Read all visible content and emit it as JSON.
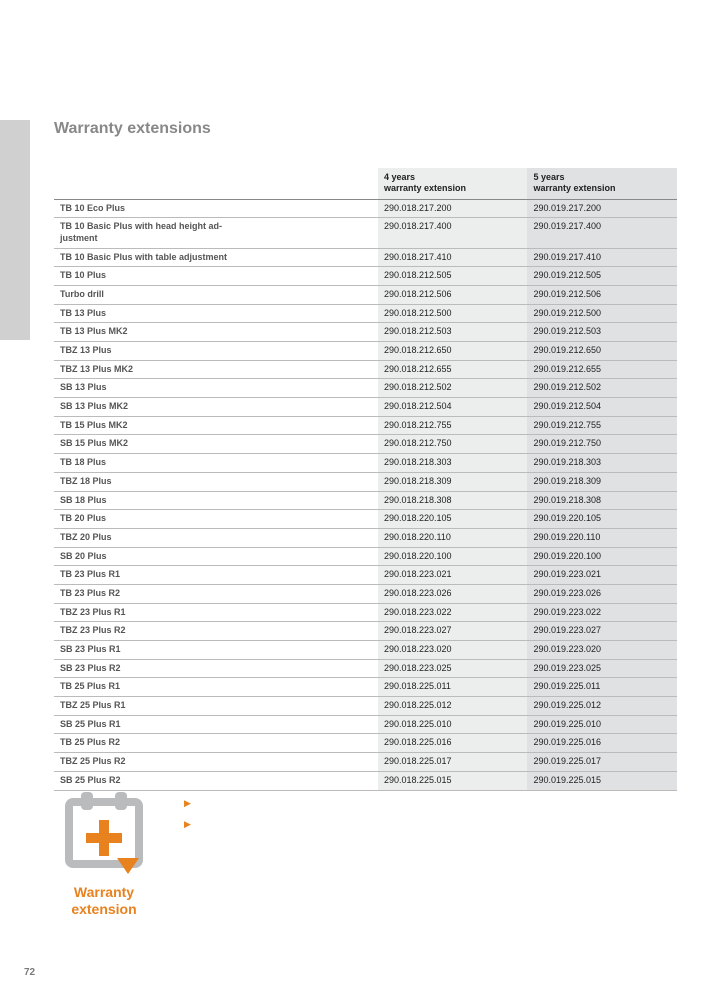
{
  "title": "Warranty extensions",
  "page_number": "72",
  "columns": {
    "c1": "",
    "c2_line1": "4 years",
    "c2_line2": "warranty extension",
    "c3_line1": "5 years",
    "c3_line2": "warranty extension"
  },
  "rows": [
    {
      "name": "TB 10 Eco Plus",
      "c4": "290.018.217.200",
      "c5": "290.019.217.200"
    },
    {
      "name": "TB 10 Basic Plus with head height ad-\njustment",
      "c4": "290.018.217.400",
      "c5": "290.019.217.400"
    },
    {
      "name": "TB 10 Basic Plus with table adjustment",
      "c4": "290.018.217.410",
      "c5": "290.019.217.410"
    },
    {
      "name": "TB 10 Plus",
      "c4": "290.018.212.505",
      "c5": "290.019.212.505"
    },
    {
      "name": "Turbo drill",
      "c4": "290.018.212.506",
      "c5": "290.019.212.506"
    },
    {
      "name": "TB 13 Plus",
      "c4": "290.018.212.500",
      "c5": "290.019.212.500"
    },
    {
      "name": "TB 13 Plus MK2",
      "c4": "290.018.212.503",
      "c5": "290.019.212.503"
    },
    {
      "name": "TBZ 13 Plus",
      "c4": "290.018.212.650",
      "c5": "290.019.212.650"
    },
    {
      "name": "TBZ 13 Plus MK2",
      "c4": "290.018.212.655",
      "c5": "290.019.212.655"
    },
    {
      "name": "SB 13 Plus",
      "c4": "290.018.212.502",
      "c5": "290.019.212.502"
    },
    {
      "name": "SB 13 Plus MK2",
      "c4": "290.018.212.504",
      "c5": "290.019.212.504"
    },
    {
      "name": "TB 15 Plus MK2",
      "c4": "290.018.212.755",
      "c5": "290.019.212.755"
    },
    {
      "name": "SB 15 Plus MK2",
      "c4": "290.018.212.750",
      "c5": "290.019.212.750"
    },
    {
      "name": "TB 18 Plus",
      "c4": "290.018.218.303",
      "c5": "290.019.218.303"
    },
    {
      "name": "TBZ 18 Plus",
      "c4": "290.018.218.309",
      "c5": "290.019.218.309"
    },
    {
      "name": "SB 18 Plus",
      "c4": "290.018.218.308",
      "c5": "290.019.218.308"
    },
    {
      "name": "TB 20 Plus",
      "c4": "290.018.220.105",
      "c5": "290.019.220.105"
    },
    {
      "name": "TBZ 20 Plus",
      "c4": "290.018.220.110",
      "c5": "290.019.220.110"
    },
    {
      "name": "SB 20 Plus",
      "c4": "290.018.220.100",
      "c5": "290.019.220.100"
    },
    {
      "name": "TB 23 Plus R1",
      "c4": "290.018.223.021",
      "c5": "290.019.223.021"
    },
    {
      "name": "TB 23 Plus R2",
      "c4": "290.018.223.026",
      "c5": "290.019.223.026"
    },
    {
      "name": "TBZ 23 Plus R1",
      "c4": "290.018.223.022",
      "c5": "290.019.223.022"
    },
    {
      "name": "TBZ 23 Plus R2",
      "c4": "290.018.223.027",
      "c5": "290.019.223.027"
    },
    {
      "name": "SB 23 Plus R1",
      "c4": "290.018.223.020",
      "c5": "290.019.223.020"
    },
    {
      "name": "SB 23 Plus R2",
      "c4": "290.018.223.025",
      "c5": "290.019.223.025"
    },
    {
      "name": "TB 25 Plus R1",
      "c4": "290.018.225.011",
      "c5": "290.019.225.011"
    },
    {
      "name": "TBZ 25 Plus R1",
      "c4": "290.018.225.012",
      "c5": "290.019.225.012"
    },
    {
      "name": "SB 25 Plus R1",
      "c4": "290.018.225.010",
      "c5": "290.019.225.010"
    },
    {
      "name": "TB 25 Plus R2",
      "c4": "290.018.225.016",
      "c5": "290.019.225.016"
    },
    {
      "name": "TBZ 25 Plus R2",
      "c4": "290.018.225.017",
      "c5": "290.019.225.017"
    },
    {
      "name": "SB 25 Plus R2",
      "c4": "290.018.225.015",
      "c5": "290.019.225.015"
    }
  ],
  "promo": {
    "label_line1": "Warranty",
    "label_line2": "extension",
    "bullet1": "",
    "bullet2": ""
  },
  "colors": {
    "accent": "#e8821e",
    "icon_grey": "#b9bbbd",
    "col2_bg": "#eceded",
    "col3_bg": "#e0e1e2"
  }
}
